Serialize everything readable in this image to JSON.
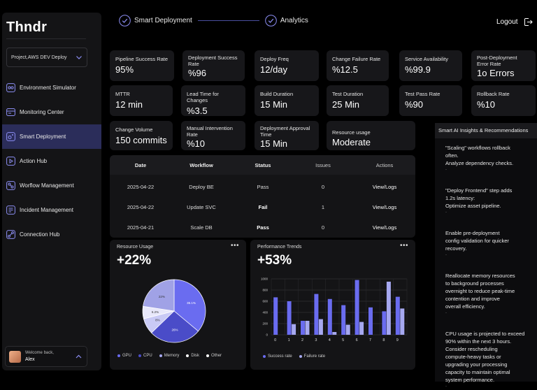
{
  "app": {
    "logo": "Thndr"
  },
  "project": {
    "selected": "Project,AWS DEV Deploy"
  },
  "sidebar": {
    "items": [
      {
        "label": "Environment Simulator",
        "icon": "simulator-icon"
      },
      {
        "label": "Monitoring Center",
        "icon": "monitor-icon"
      },
      {
        "label": "Smart Deployment",
        "icon": "deploy-icon",
        "active": true
      },
      {
        "label": "Action Hub",
        "icon": "play-icon"
      },
      {
        "label": "Worflow Management",
        "icon": "workflow-icon"
      },
      {
        "label": "Incident Management",
        "icon": "incident-icon"
      },
      {
        "label": "Connection Hub",
        "icon": "connection-icon"
      }
    ]
  },
  "user": {
    "greeting": "Welcome back,",
    "name": "Alex"
  },
  "stepper": {
    "step1": "Smart Deployment",
    "step2": "Analytics"
  },
  "header": {
    "logout_label": "Logout"
  },
  "metrics": [
    {
      "label": "Pipeline Success Rate",
      "value": "95%"
    },
    {
      "label": "Deployment Success Rate",
      "value": "%96"
    },
    {
      "label": "Deploy Freq",
      "value": "12/day"
    },
    {
      "label": "Change Failure Rate",
      "value": "%12.5"
    },
    {
      "label": "Service Availability",
      "value": "%99.9"
    },
    {
      "label": "Post-Deployment Error Rate",
      "value": "1o Errors"
    },
    {
      "label": "MTTR",
      "value": "12 min"
    },
    {
      "label": "Lead Time for Changes",
      "value": "%3.5"
    },
    {
      "label": "Build Duration",
      "value": "15 Min"
    },
    {
      "label": "Test Duration",
      "value": "25 Min"
    },
    {
      "label": "Test Pass Rate",
      "value": "%90"
    },
    {
      "label": "Rollback Rate",
      "value": "%10"
    },
    {
      "label": "Change Volume",
      "value": "150 commits"
    },
    {
      "label": "Manual Intervention Rate",
      "value": "%10"
    },
    {
      "label": "Deployment Approval Time",
      "value": "15 Min"
    },
    {
      "label": "Resource usage",
      "value": "Moderate"
    }
  ],
  "table": {
    "headers": {
      "date": "Date",
      "workflow": "Workflow",
      "status": "Status",
      "issues": "Issues",
      "actions": "Actions"
    },
    "rows": [
      {
        "date": "2025-04-22",
        "workflow": "Deploy BE",
        "status": "Pass",
        "issues": "0",
        "action": "View/Logs"
      },
      {
        "date": "2025-04-22",
        "workflow": "Update SVC",
        "status": "Fail",
        "issues": "1",
        "action": "View/Logs"
      },
      {
        "date": "2025-04-21",
        "workflow": "Scale DB",
        "status": "Pass",
        "issues": "0",
        "action": "View/Logs"
      }
    ]
  },
  "resource_panel": {
    "title": "Resource Usage",
    "big_value": "+22%",
    "menu": "•••"
  },
  "performance_panel": {
    "title": "Performance Trends",
    "big_value": "+53%",
    "menu": "•••"
  },
  "insights": {
    "title": "Smart AI Insights & Recommendations",
    "items": [
      {
        "lines": [
          "\"Scaling\" workflows rollback",
          "often.",
          "Analyze dependency checks."
        ]
      },
      {
        "lines": [
          "\"Deploy Frontend\" step adds",
          "1.2s latency:",
          "Optimize asset pipeline."
        ]
      },
      {
        "lines": [
          "Enable pre-deployment",
          "config validation for quicker",
          "recovery."
        ]
      },
      {
        "lines": [
          "Reallocate memory resources",
          "to background processes",
          "overnight to reduce peak-time",
          "contention and improve",
          "overall efficiency."
        ]
      },
      {
        "lines": [
          "CPU usage is projected to exceed",
          "90% within the next 3 hours.",
          "Consider rescheduling",
          "compute-heavy tasks or",
          "upgrading your processing",
          "capacity to maintain optimal",
          "system performance."
        ]
      }
    ],
    "bullet": "-"
  },
  "colors": {
    "accent": "#6a6cf0",
    "accent_dark": "#4a4cc8",
    "accent_light": "#a6a8f0",
    "active_nav": "#2b2d5a"
  },
  "chart_data": [
    {
      "type": "pie",
      "categories": [
        "GPU",
        "CPU",
        "Memory",
        "Disk",
        "Other"
      ],
      "values": [
        35.1,
        26,
        8,
        6.2,
        22
      ],
      "labels": [
        "35.1%",
        "26%",
        "8%",
        "6.2%",
        "22%"
      ],
      "colors": [
        "#6a6cf0",
        "#4a4cc8",
        "#c9caf5",
        "#e8e8fa",
        "#a0a2e6"
      ],
      "legend": "bottom"
    },
    {
      "type": "bar",
      "categories": [
        "0",
        "1",
        "2",
        "3",
        "4",
        "5",
        "6",
        "7",
        "8",
        "9"
      ],
      "series": [
        {
          "name": "Success rate",
          "values": [
            670,
            600,
            250,
            730,
            640,
            530,
            980,
            490,
            420,
            680
          ],
          "color": "#6a6cf0"
        },
        {
          "name": "Failure rate",
          "values": [
            0,
            190,
            250,
            280,
            50,
            180,
            230,
            0,
            950,
            470
          ],
          "color": "#a6a8f0"
        }
      ],
      "yticks": [
        "1000",
        "800",
        "600",
        "400",
        "200",
        "0"
      ],
      "ylim": [
        0,
        1000
      ],
      "grid": true,
      "legend": "bottom"
    }
  ]
}
